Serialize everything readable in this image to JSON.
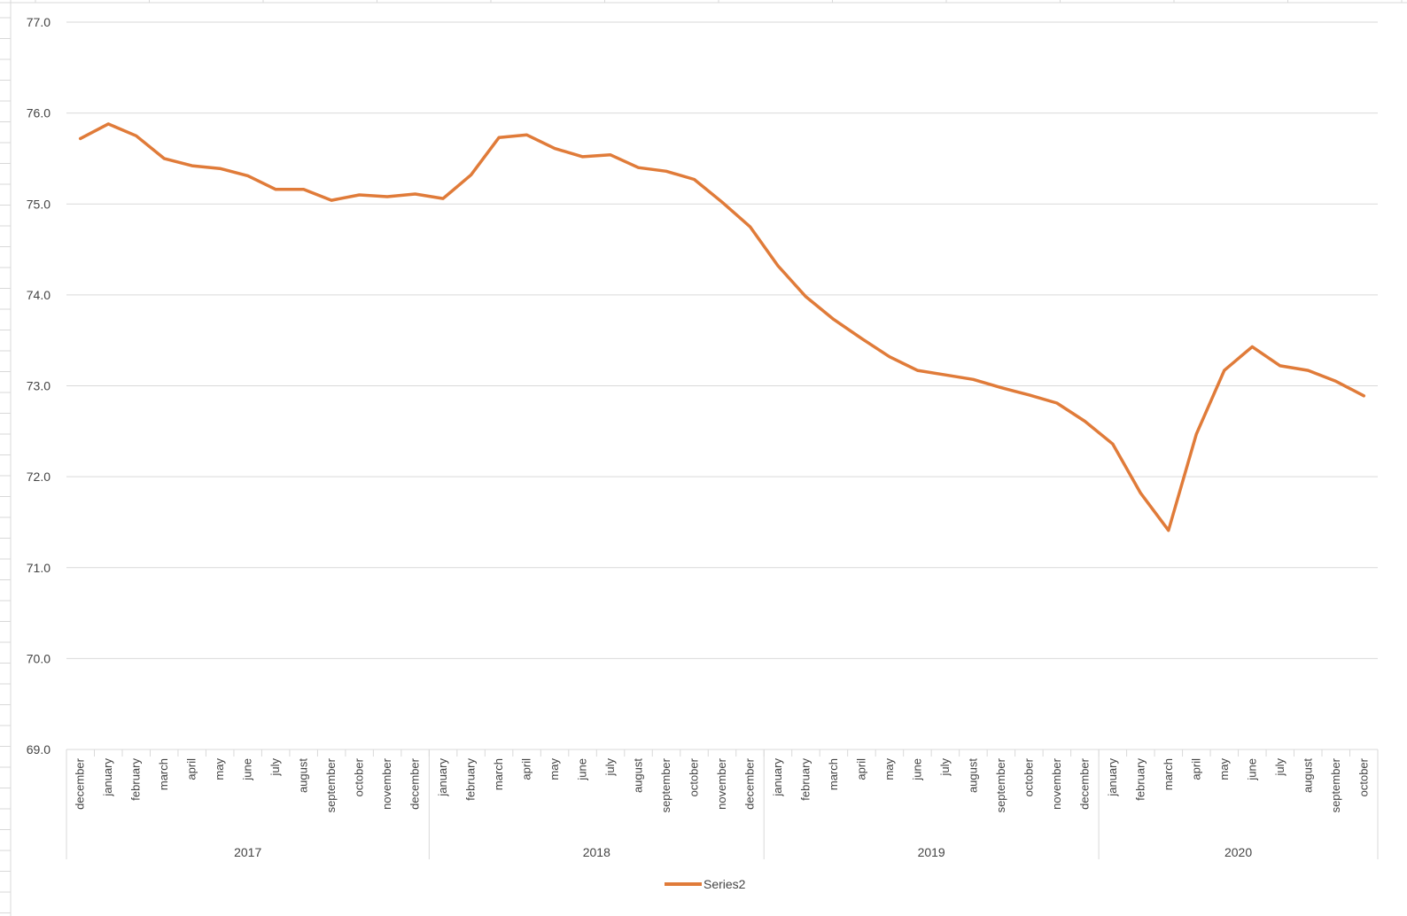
{
  "chart_data": {
    "type": "line",
    "title": "",
    "xlabel": "",
    "ylabel": "",
    "ylim": [
      69,
      77
    ],
    "ytick_step": 1,
    "ytick_labels": [
      "69.0",
      "70.0",
      "71.0",
      "72.0",
      "73.0",
      "74.0",
      "75.0",
      "76.0",
      "77.0"
    ],
    "grid": "horizontal",
    "legend": "bottom",
    "groups": [
      {
        "label": "2017",
        "categories": [
          "december",
          "january",
          "february",
          "march",
          "april",
          "may",
          "june",
          "july",
          "august",
          "september",
          "october",
          "november",
          "december"
        ]
      },
      {
        "label": "2018",
        "categories": [
          "january",
          "february",
          "march",
          "april",
          "may",
          "june",
          "july",
          "august",
          "september",
          "october",
          "november",
          "december"
        ]
      },
      {
        "label": "2019",
        "categories": [
          "january",
          "february",
          "march",
          "april",
          "may",
          "june",
          "july",
          "august",
          "september",
          "october",
          "november",
          "december"
        ]
      },
      {
        "label": "2020",
        "categories": [
          "january",
          "february",
          "march",
          "april",
          "may",
          "june",
          "july",
          "august",
          "september",
          "october"
        ]
      }
    ],
    "series": [
      {
        "name": "Series2",
        "color": "#E07B39",
        "values": [
          75.72,
          75.88,
          75.75,
          75.5,
          75.42,
          75.39,
          75.31,
          75.16,
          75.16,
          75.04,
          75.1,
          75.08,
          75.11,
          75.06,
          75.32,
          75.73,
          75.76,
          75.61,
          75.52,
          75.54,
          75.4,
          75.36,
          75.27,
          75.02,
          74.75,
          74.32,
          73.98,
          73.73,
          73.52,
          73.32,
          73.17,
          73.12,
          73.07,
          72.98,
          72.9,
          72.81,
          72.61,
          72.36,
          71.82,
          71.41,
          72.47,
          73.17,
          73.43,
          73.22,
          73.17,
          73.05,
          72.89
        ]
      }
    ]
  }
}
